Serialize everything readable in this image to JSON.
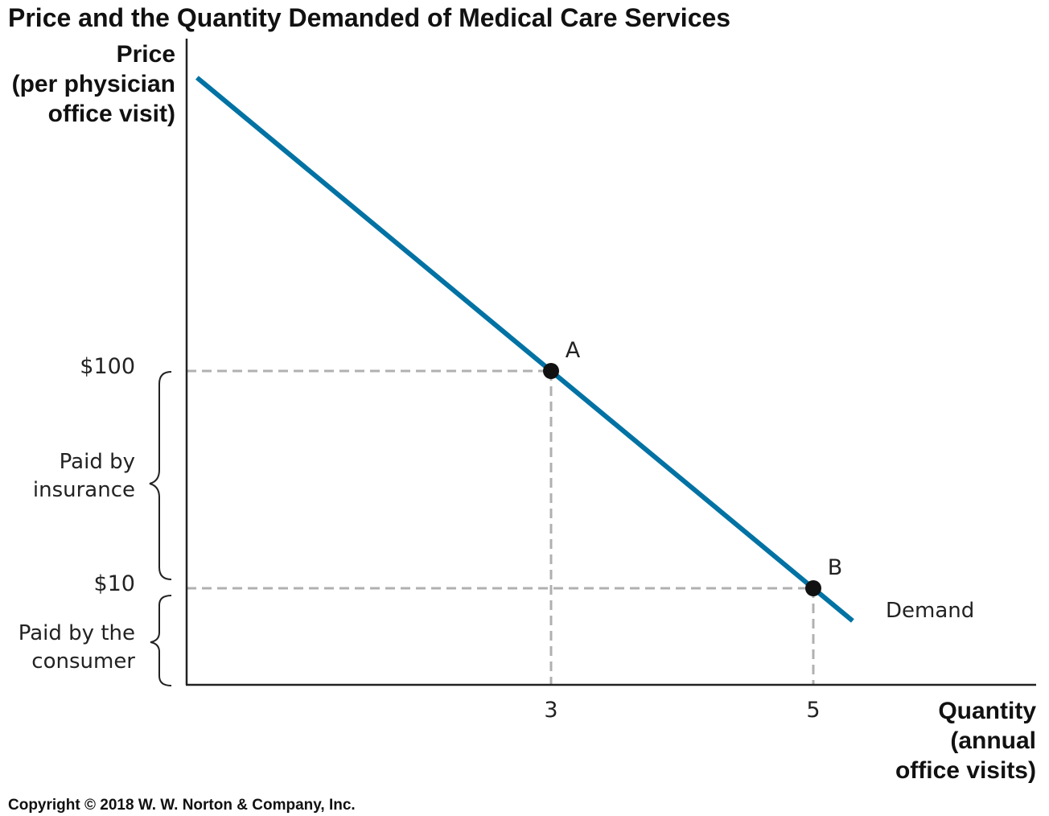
{
  "chart_data": {
    "type": "line",
    "title": "Price and the Quantity Demanded of Medical Care Services",
    "ylabel_lines": [
      "Price",
      "(per physician",
      "office visit)"
    ],
    "xlabel_lines": [
      "Quantity",
      "(annual",
      "office visits)"
    ],
    "series": [
      {
        "name": "Demand",
        "color": "#0072a3",
        "points": [
          {
            "x": 3,
            "y": 100
          },
          {
            "x": 5,
            "y": 10
          }
        ]
      }
    ],
    "points": [
      {
        "label": "A",
        "x": 3,
        "y": 100
      },
      {
        "label": "B",
        "x": 5,
        "y": 10
      }
    ],
    "x_ticks": [
      {
        "value": 3,
        "label": "3"
      },
      {
        "value": 5,
        "label": "5"
      }
    ],
    "y_ticks": [
      {
        "value": 100,
        "label": "$100"
      },
      {
        "value": 10,
        "label": "$10"
      }
    ],
    "brackets": [
      {
        "from": 10,
        "to": 100,
        "lines": [
          "Paid by",
          "insurance"
        ]
      },
      {
        "from": 0,
        "to": 10,
        "lines": [
          "Paid by the",
          "consumer"
        ]
      }
    ],
    "grid": false,
    "colors": {
      "demand_line": "#0072a3",
      "guide_line": "#b0b0b0",
      "axis": "#222222",
      "point": "#111111"
    }
  },
  "copyright": "Copyright © 2018 W. W. Norton & Company, Inc."
}
